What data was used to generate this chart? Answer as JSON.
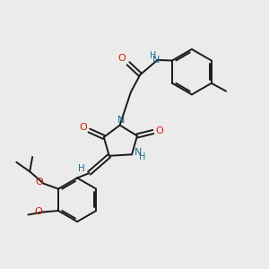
{
  "bg_color": "#ebebeb",
  "bond_color": "#1a1a1a",
  "N_color": "#1a6e8e",
  "O_color": "#cc2200",
  "H_color": "#1a6e8e",
  "figsize": [
    3.0,
    3.0
  ],
  "dpi": 100,
  "xlim": [
    0,
    10
  ],
  "ylim": [
    0,
    10
  ]
}
